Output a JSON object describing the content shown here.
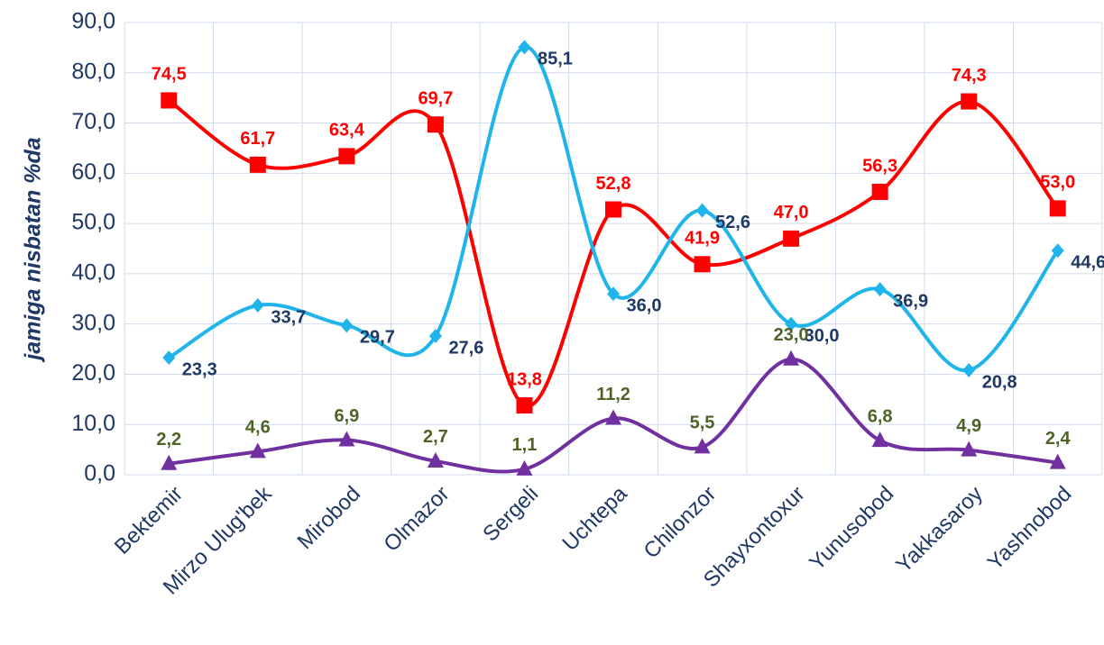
{
  "chart_data": {
    "type": "line",
    "y_label": "jamiga nisbatan %da",
    "categories": [
      "Bektemir",
      "Mirzo Ulug'bek",
      "Mirobod",
      "Olmazor",
      "Sergeli",
      "Uchtepa",
      "Chilonzor",
      "Shayxontoxur",
      "Yunusobod",
      "Yakkasaroy",
      "Yashnobod"
    ],
    "series": [
      {
        "color": "#ff0000",
        "marker": "square",
        "label_color": "#ff0000",
        "values": [
          74.5,
          61.7,
          63.4,
          69.7,
          13.8,
          52.8,
          41.9,
          47.0,
          56.3,
          74.3,
          53.0
        ],
        "value_labels": [
          "74,5",
          "61,7",
          "63,4",
          "69,7",
          "13,8",
          "52,8",
          "41,9",
          "47,0",
          "56,3",
          "74,3",
          "53,0"
        ]
      },
      {
        "color": "#1fb4ea",
        "marker": "diamond",
        "label_color": "#1f3864",
        "values": [
          23.3,
          33.7,
          29.7,
          27.6,
          85.1,
          36.0,
          52.6,
          30.0,
          36.9,
          20.8,
          44.6
        ],
        "value_labels": [
          "23,3",
          "33,7",
          "29,7",
          "27,6",
          "85,1",
          "36,0",
          "52,6",
          "30,0",
          "36,9",
          "20,8",
          "44,6"
        ]
      },
      {
        "color": "#7030a0",
        "marker": "triangle",
        "label_color": "#4f6228",
        "values": [
          2.2,
          4.6,
          6.9,
          2.7,
          1.1,
          11.2,
          5.5,
          23.0,
          6.8,
          4.9,
          2.4
        ],
        "value_labels": [
          "2,2",
          "4,6",
          "6,9",
          "2,7",
          "1,1",
          "11,2",
          "5,5",
          "23,0",
          "6,8",
          "4,9",
          "2,4"
        ]
      }
    ],
    "ylim": [
      0,
      90
    ],
    "yticks": [
      {
        "value": 0,
        "label": "0,0"
      },
      {
        "value": 10,
        "label": "10,0"
      },
      {
        "value": 20,
        "label": "20,0"
      },
      {
        "value": 30,
        "label": "30,0"
      },
      {
        "value": 40,
        "label": "40,0"
      },
      {
        "value": 50,
        "label": "50,0"
      },
      {
        "value": 60,
        "label": "60,0"
      },
      {
        "value": 70,
        "label": "70,0"
      },
      {
        "value": 80,
        "label": "80,0"
      },
      {
        "value": 90,
        "label": "90,0"
      }
    ],
    "grid": true,
    "smooth": true
  }
}
